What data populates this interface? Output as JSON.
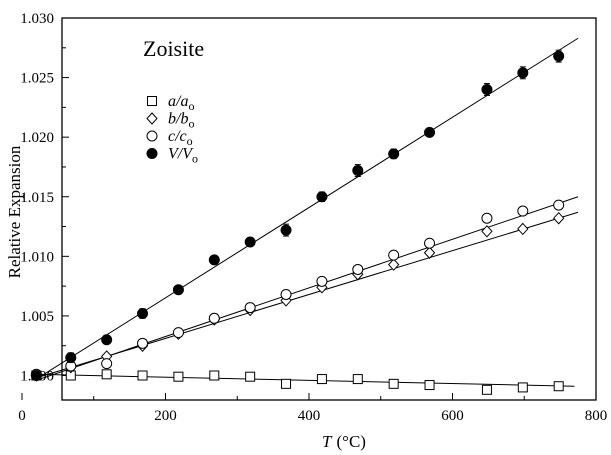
{
  "chart_data": {
    "type": "scatter",
    "annotation": "Zoisite",
    "xlabel": {
      "var": "T",
      "unit": "(°C)"
    },
    "ylabel": "Relative Expansion",
    "xlim": [
      0,
      800
    ],
    "ylim": [
      0.9965,
      1.03
    ],
    "xticks": [
      0,
      200,
      400,
      600,
      800
    ],
    "xtick_labels": [
      "0",
      "200",
      "400",
      "600",
      "800"
    ],
    "yticks": [
      1.0,
      1.005,
      1.01,
      1.015,
      1.02,
      1.025,
      1.03
    ],
    "ytick_labels": [
      "1.000",
      "1.005",
      "1.010",
      "1.015",
      "1.020",
      "1.025",
      "1.030"
    ],
    "legend_position": "top-left",
    "series": [
      {
        "name": "a/a",
        "name_main": "a/a",
        "name_sub": "o",
        "marker": "open-square",
        "x": [
          20,
          68,
          118,
          168,
          218,
          268,
          318,
          368,
          418,
          468,
          518,
          568,
          648,
          698,
          748
        ],
        "y": [
          1.0,
          1.0,
          1.0001,
          1.0,
          0.9999,
          1.0,
          0.9999,
          0.9993,
          0.9997,
          0.9997,
          0.9993,
          0.9992,
          0.9988,
          0.999,
          0.9991
        ],
        "fit": [
          [
            20,
            1.0001
          ],
          [
            770,
            0.9991
          ]
        ]
      },
      {
        "name": "b/b",
        "name_main": "b/b",
        "name_sub": "o",
        "marker": "open-diamond",
        "x": [
          20,
          68,
          118,
          168,
          218,
          268,
          318,
          368,
          418,
          468,
          518,
          568,
          648,
          698,
          748
        ],
        "y": [
          1.0,
          1.0007,
          1.0016,
          1.0025,
          1.0035,
          1.0047,
          1.0055,
          1.0063,
          1.0074,
          1.0085,
          1.0093,
          1.0103,
          1.0121,
          1.0123,
          1.0132
        ],
        "fit": [
          [
            20,
            0.9998
          ],
          [
            775,
            1.0137
          ]
        ]
      },
      {
        "name": "c/c",
        "name_main": "c/c",
        "name_sub": "o",
        "marker": "open-circle",
        "x": [
          20,
          68,
          118,
          168,
          218,
          268,
          318,
          368,
          418,
          468,
          518,
          568,
          648,
          698,
          748
        ],
        "y": [
          1.0001,
          1.0008,
          1.001,
          1.0027,
          1.0036,
          1.0048,
          1.0057,
          1.0068,
          1.0079,
          1.0089,
          1.0101,
          1.0111,
          1.0132,
          1.0138,
          1.0143
        ],
        "fit": [
          [
            20,
            0.9996
          ],
          [
            775,
            1.015
          ]
        ]
      },
      {
        "name": "V/V",
        "name_main": "V/V",
        "name_sub": "o",
        "marker": "filled-circle",
        "x": [
          20,
          68,
          118,
          168,
          218,
          268,
          318,
          368,
          418,
          468,
          518,
          568,
          648,
          698,
          748
        ],
        "y": [
          1.0,
          1.0015,
          1.003,
          1.0052,
          1.0072,
          1.0097,
          1.0112,
          1.0122,
          1.015,
          1.0172,
          1.0186,
          1.0204,
          1.024,
          1.0254,
          1.0268
        ],
        "err": [
          0.0003,
          0.0004,
          0.0003,
          0.0004,
          0.0003,
          0.0003,
          0.0003,
          0.0005,
          0.0004,
          0.0005,
          0.0004,
          0.0003,
          0.0005,
          0.0005,
          0.0005
        ],
        "fit": [
          [
            20,
            0.9997
          ],
          [
            775,
            1.0283
          ]
        ]
      }
    ]
  }
}
